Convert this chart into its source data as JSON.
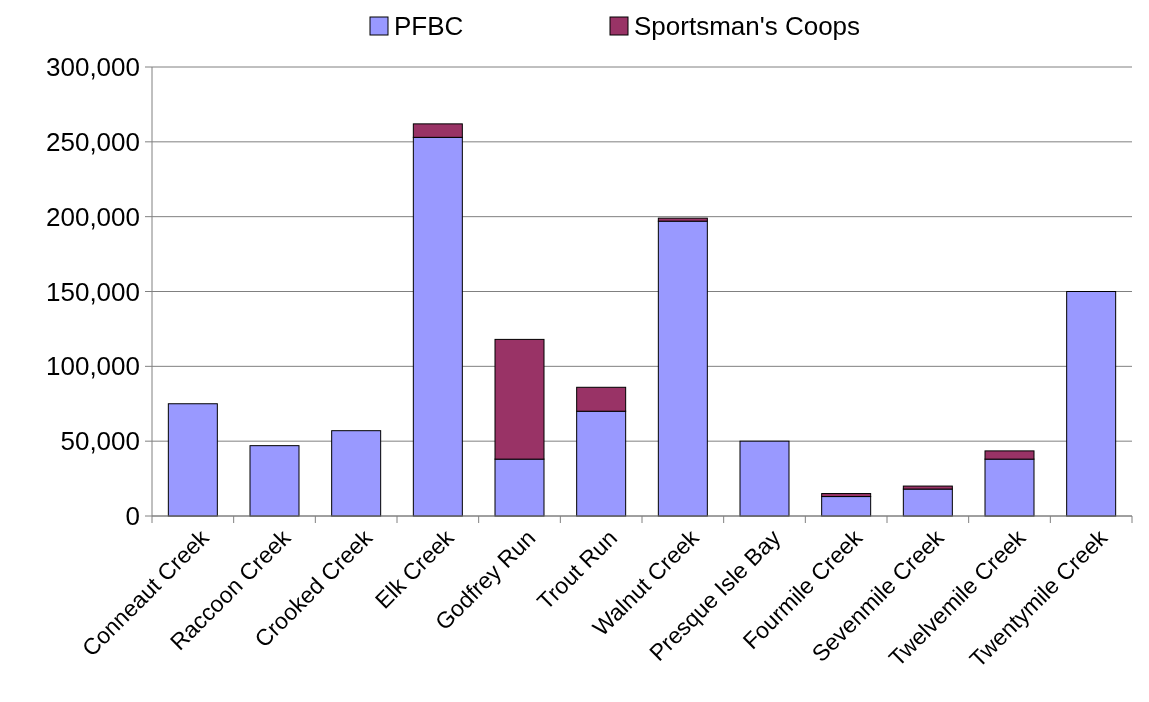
{
  "chart_data": {
    "type": "bar",
    "stacked": true,
    "categories": [
      "Conneaut Creek",
      "Raccoon Creek",
      "Crooked Creek",
      "Elk Creek",
      "Godfrey Run",
      "Trout Run",
      "Walnut Creek",
      "Presque Isle Bay",
      "Fourmile Creek",
      "Sevenmile Creek",
      "Twelvemile Creek",
      "Twentymile Creek"
    ],
    "series": [
      {
        "name": "PFBC",
        "color": "#9999ff",
        "values": [
          75000,
          47000,
          57000,
          253000,
          38000,
          70000,
          197000,
          50000,
          13000,
          18000,
          38000,
          150000
        ]
      },
      {
        "name": "Sportsman's Coops",
        "color": "#993366",
        "values": [
          0,
          0,
          0,
          9000,
          80000,
          16000,
          2000,
          0,
          2000,
          2000,
          5500,
          0
        ]
      }
    ],
    "ylim": [
      0,
      300000
    ],
    "yticks": [
      {
        "value": 0,
        "label": "0"
      },
      {
        "value": 50000,
        "label": "50,000"
      },
      {
        "value": 100000,
        "label": "100,000"
      },
      {
        "value": 150000,
        "label": "150,000"
      },
      {
        "value": 200000,
        "label": "200,000"
      },
      {
        "value": 250000,
        "label": "250,000"
      },
      {
        "value": 300000,
        "label": "300,000"
      }
    ],
    "grid": "y",
    "legend": "top"
  }
}
